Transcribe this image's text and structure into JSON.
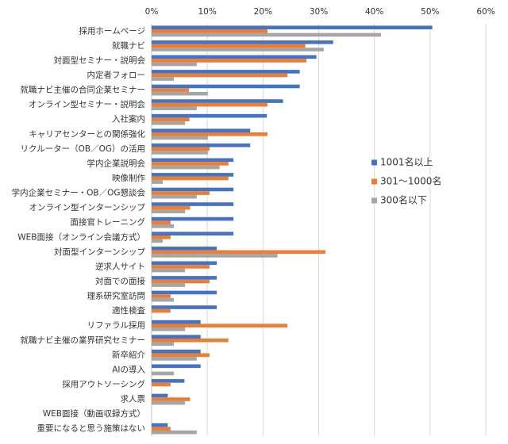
{
  "chart_data": {
    "type": "hbar",
    "categories": [
      "採用ホームページ",
      "就職ナビ",
      "対面型セミナー・説明会",
      "内定者フォロー",
      "就職ナビ主催の合同企業セミナー",
      "オンライン型セミナー・説明会",
      "入社案内",
      "キャリアセンターとの関係強化",
      "リクルーター（OB／OG）の活用",
      "学内企業説明会",
      "映像制作",
      "学内企業セミナー・OB／OG懇談会",
      "オンライン型インターンシップ",
      "面接官トレーニング",
      "WEB面接（オンライン会議方式）",
      "対面型インターンシップ",
      "逆求人サイト",
      "対面での面接",
      "理系研究室訪問",
      "適性検査",
      "リファラル採用",
      "就職ナビ主催の業界研究セミナー",
      "新卒紹介",
      "AIの導入",
      "採用アウトソーシング",
      "求人票",
      "WEB面接（動画収録方式）",
      "重要になると思う施策はない"
    ],
    "series": [
      {
        "name": "1001名以上",
        "color": "#4472c4",
        "values": [
          50.4,
          32.6,
          29.6,
          26.6,
          26.6,
          23.6,
          20.7,
          17.7,
          17.7,
          14.7,
          14.7,
          14.7,
          14.7,
          14.7,
          14.7,
          11.7,
          11.7,
          11.7,
          11.7,
          11.7,
          8.8,
          8.8,
          8.8,
          8.8,
          5.9,
          2.9,
          0,
          2.9
        ]
      },
      {
        "name": "301～1000名",
        "color": "#ed7d31",
        "values": [
          20.8,
          27.6,
          27.8,
          24.4,
          6.7,
          20.8,
          6.8,
          20.8,
          10.4,
          13.8,
          13.8,
          10.4,
          6.9,
          3.4,
          3.4,
          31.2,
          10.4,
          10.4,
          3.4,
          3.4,
          24.4,
          13.8,
          10.4,
          0,
          3.4,
          6.9,
          0,
          3.4
        ]
      },
      {
        "name": "300名以下",
        "color": "#a5a5a5",
        "values": [
          41.2,
          30.9,
          8.1,
          4.0,
          10.1,
          8.1,
          6.0,
          10.1,
          10.1,
          12.2,
          2.0,
          8.1,
          6.0,
          4.0,
          2.0,
          22.6,
          6.0,
          6.0,
          4.0,
          0,
          6.0,
          4.0,
          8.1,
          4.0,
          0,
          6.0,
          0,
          8.1
        ]
      }
    ],
    "xlim": [
      0,
      60
    ],
    "xticks": [
      {
        "value": 0,
        "label": "0%"
      },
      {
        "value": 10,
        "label": "10%"
      },
      {
        "value": 20,
        "label": "20%"
      },
      {
        "value": 30,
        "label": "30%"
      },
      {
        "value": 40,
        "label": "40%"
      },
      {
        "value": 50,
        "label": "50%"
      },
      {
        "value": 60,
        "label": "60%"
      }
    ],
    "grid": true,
    "legend": "right"
  }
}
